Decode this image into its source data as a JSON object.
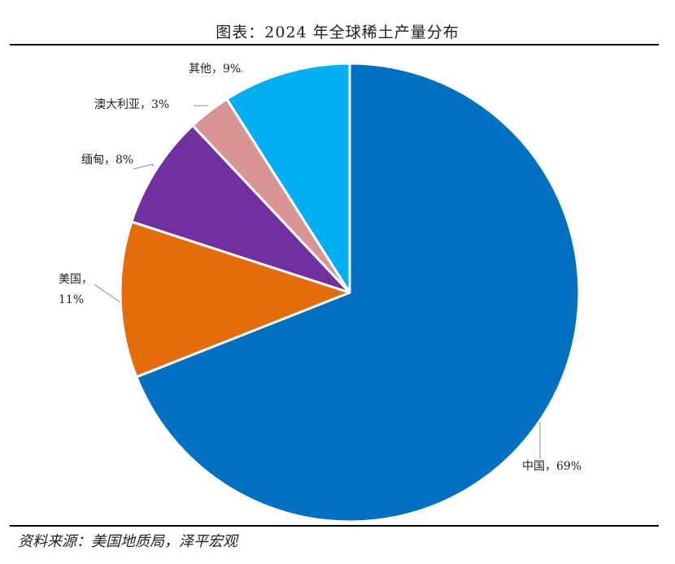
{
  "title": "图表：2024 年全球稀土产量分布",
  "source": "资料来源：美国地质局，泽平宏观",
  "chart_data": {
    "type": "pie",
    "title": "图表：2024 年全球稀土产量分布",
    "slices": [
      {
        "label": "中国",
        "value": 69,
        "value_label": "69%",
        "color": "#0070C0",
        "display": "中国，69%"
      },
      {
        "label": "美国",
        "value": 11,
        "value_label": "11%",
        "color": "#E46C0A",
        "display_line1": "美国，",
        "display_line2": "11%"
      },
      {
        "label": "缅甸",
        "value": 8,
        "value_label": "8%",
        "color": "#7030A0",
        "display": "缅甸，8%"
      },
      {
        "label": "澳大利亚",
        "value": 3,
        "value_label": "3%",
        "color": "#D99594",
        "display": "澳大利亚，3%"
      },
      {
        "label": "其他",
        "value": 9,
        "value_label": "9%",
        "color": "#00B0F0",
        "display": "其他，9%"
      }
    ],
    "start_angle": "12 o'clock",
    "direction": "clockwise",
    "legend": "none"
  }
}
